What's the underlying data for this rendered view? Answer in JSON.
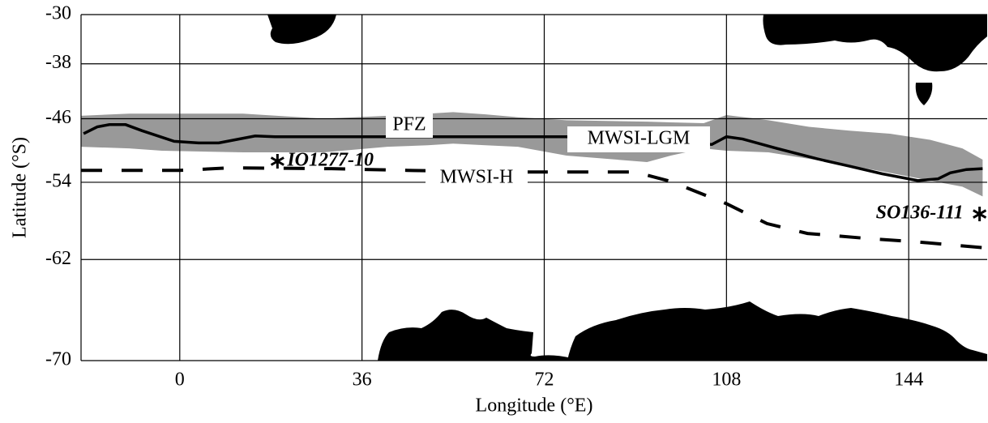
{
  "chart_data": {
    "type": "map",
    "projection": "mercator",
    "xlabel": "Longitude (°E)",
    "ylabel": "Latitude (°S)",
    "xlim": [
      -19.5,
      159.5
    ],
    "xticks": [
      0,
      36,
      72,
      108,
      144
    ],
    "ylim": [
      -70,
      -30
    ],
    "yticks": [
      -30,
      -38,
      -46,
      -54,
      -62,
      -70
    ],
    "grid": true,
    "band": {
      "name": "PFZ",
      "color": "#999999",
      "x": [
        -19.5,
        -10,
        -3.5,
        12.5,
        28.4,
        41,
        49,
        54,
        60.4,
        66.8,
        76.4,
        92.3,
        97,
        103.5,
        108,
        116.3,
        124.3,
        132.3,
        140.3,
        148.2,
        154.6,
        158.6
      ],
      "upper": [
        -45.6,
        -45.3,
        -45.3,
        -45.3,
        -46.0,
        -45.6,
        -45.3,
        -45.1,
        -45.4,
        -45.8,
        -46.2,
        -46.4,
        -46.5,
        -46.6,
        -45.5,
        -46.2,
        -47.1,
        -47.6,
        -48.0,
        -48.8,
        -49.9,
        -51.3
      ],
      "lower": [
        -49.7,
        -49.9,
        -50.2,
        -50.4,
        -50.4,
        -49.7,
        -49.5,
        -49.3,
        -49.5,
        -49.7,
        -50.8,
        -51.6,
        -50.8,
        -49.9,
        -50.2,
        -50.4,
        -51.2,
        -52.0,
        -52.9,
        -53.8,
        -54.5,
        -55.6
      ]
    },
    "series": [
      {
        "name": "MWSI-LGM",
        "color": "#000000",
        "dashed": false,
        "x": [
          -19,
          -16.3,
          -13.9,
          -10.7,
          -7.5,
          -1.1,
          3.7,
          7.7,
          14.9,
          18.8,
          76.4,
          105.1,
          108,
          111.2,
          117.9,
          125.9,
          132.3,
          138.7,
          145.8,
          149.8,
          152.2,
          155.4,
          158.6
        ],
        "values": [
          -48.0,
          -47.1,
          -46.8,
          -46.8,
          -47.6,
          -49.0,
          -49.2,
          -49.2,
          -48.3,
          -48.4,
          -48.4,
          -49.4,
          -48.4,
          -48.7,
          -49.9,
          -51.2,
          -52.1,
          -53.0,
          -53.8,
          -53.6,
          -52.9,
          -52.5,
          -52.4
        ]
      },
      {
        "name": "MWSI-H",
        "color": "#000000",
        "dashed": true,
        "x": [
          -19.5,
          0,
          10,
          30,
          45,
          66,
          90,
          97,
          108,
          116,
          124,
          136,
          145,
          159
        ],
        "values": [
          -52.6,
          -52.6,
          -52.3,
          -52.4,
          -52.6,
          -52.8,
          -52.8,
          -53.9,
          -56.4,
          -58.5,
          -59.5,
          -60.0,
          -60.3,
          -60.9
        ]
      }
    ],
    "sites": {
      "names": [
        "IO1277-10",
        "SO136-111"
      ],
      "x": [
        19.3,
        158
      ],
      "values": [
        -51.5,
        -57.5
      ]
    }
  }
}
